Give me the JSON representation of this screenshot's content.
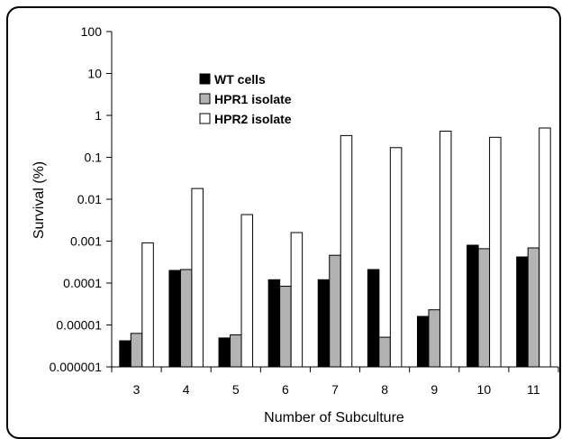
{
  "chart_data": {
    "type": "bar",
    "title": "",
    "xlabel": "Number of Subculture",
    "ylabel": "Survival (%)",
    "yscale": "log",
    "ylim": [
      1e-06,
      100
    ],
    "yticks": [
      "100",
      "10",
      "1",
      "0.1",
      "0.01",
      "0.001",
      "0.0001",
      "0.00001",
      "0.000001"
    ],
    "grid": false,
    "legend_position": "top-left",
    "categories": [
      "3",
      "4",
      "5",
      "6",
      "7",
      "8",
      "9",
      "10",
      "11"
    ],
    "series": [
      {
        "name": "WT cells",
        "color": "#000000",
        "values": [
          4.2e-06,
          0.0002,
          4.9e-06,
          0.00012,
          0.00012,
          0.00021,
          1.6e-05,
          0.0008,
          0.00042
        ]
      },
      {
        "name": "HPR1 isolate",
        "color": "#b3b3b3",
        "values": [
          6.3e-06,
          0.00021,
          5.8e-06,
          8.4e-05,
          0.00046,
          5.1e-06,
          2.3e-05,
          0.00066,
          0.00069
        ]
      },
      {
        "name": "HPR2 isolate",
        "color": "#ffffff",
        "values": [
          0.00091,
          0.018,
          0.0043,
          0.0016,
          0.33,
          0.17,
          0.42,
          0.3,
          0.5
        ]
      }
    ]
  }
}
